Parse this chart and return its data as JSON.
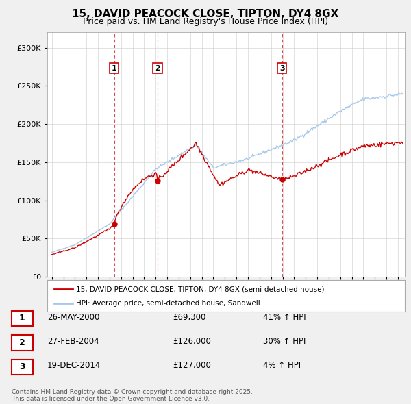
{
  "title": "15, DAVID PEACOCK CLOSE, TIPTON, DY4 8GX",
  "subtitle": "Price paid vs. HM Land Registry's House Price Index (HPI)",
  "hpi_label": "HPI: Average price, semi-detached house, Sandwell",
  "property_label": "15, DAVID PEACOCK CLOSE, TIPTON, DY4 8GX (semi-detached house)",
  "sale_prices": [
    69300,
    126000,
    127000
  ],
  "sale_labels": [
    "1",
    "2",
    "3"
  ],
  "sale_year_floats": [
    2000.397,
    2004.155,
    2014.963
  ],
  "hpi_color": "#a8c8e8",
  "price_color": "#cc0000",
  "background_color": "#f0f0f0",
  "plot_bg_color": "#ffffff",
  "ylim": [
    0,
    320000
  ],
  "yticks": [
    0,
    50000,
    100000,
    150000,
    200000,
    250000,
    300000
  ],
  "ytick_labels": [
    "£0",
    "£50K",
    "£100K",
    "£150K",
    "£200K",
    "£250K",
    "£300K"
  ],
  "footer_text": "Contains HM Land Registry data © Crown copyright and database right 2025.\nThis data is licensed under the Open Government Licence v3.0.",
  "legend_box_color": "#cc0000",
  "table_row1": [
    "1",
    "26-MAY-2000",
    "£69,300",
    "41% ↑ HPI"
  ],
  "table_row2": [
    "2",
    "27-FEB-2004",
    "£126,000",
    "30% ↑ HPI"
  ],
  "table_row3": [
    "3",
    "19-DEC-2014",
    "£127,000",
    "4% ↑ HPI"
  ]
}
